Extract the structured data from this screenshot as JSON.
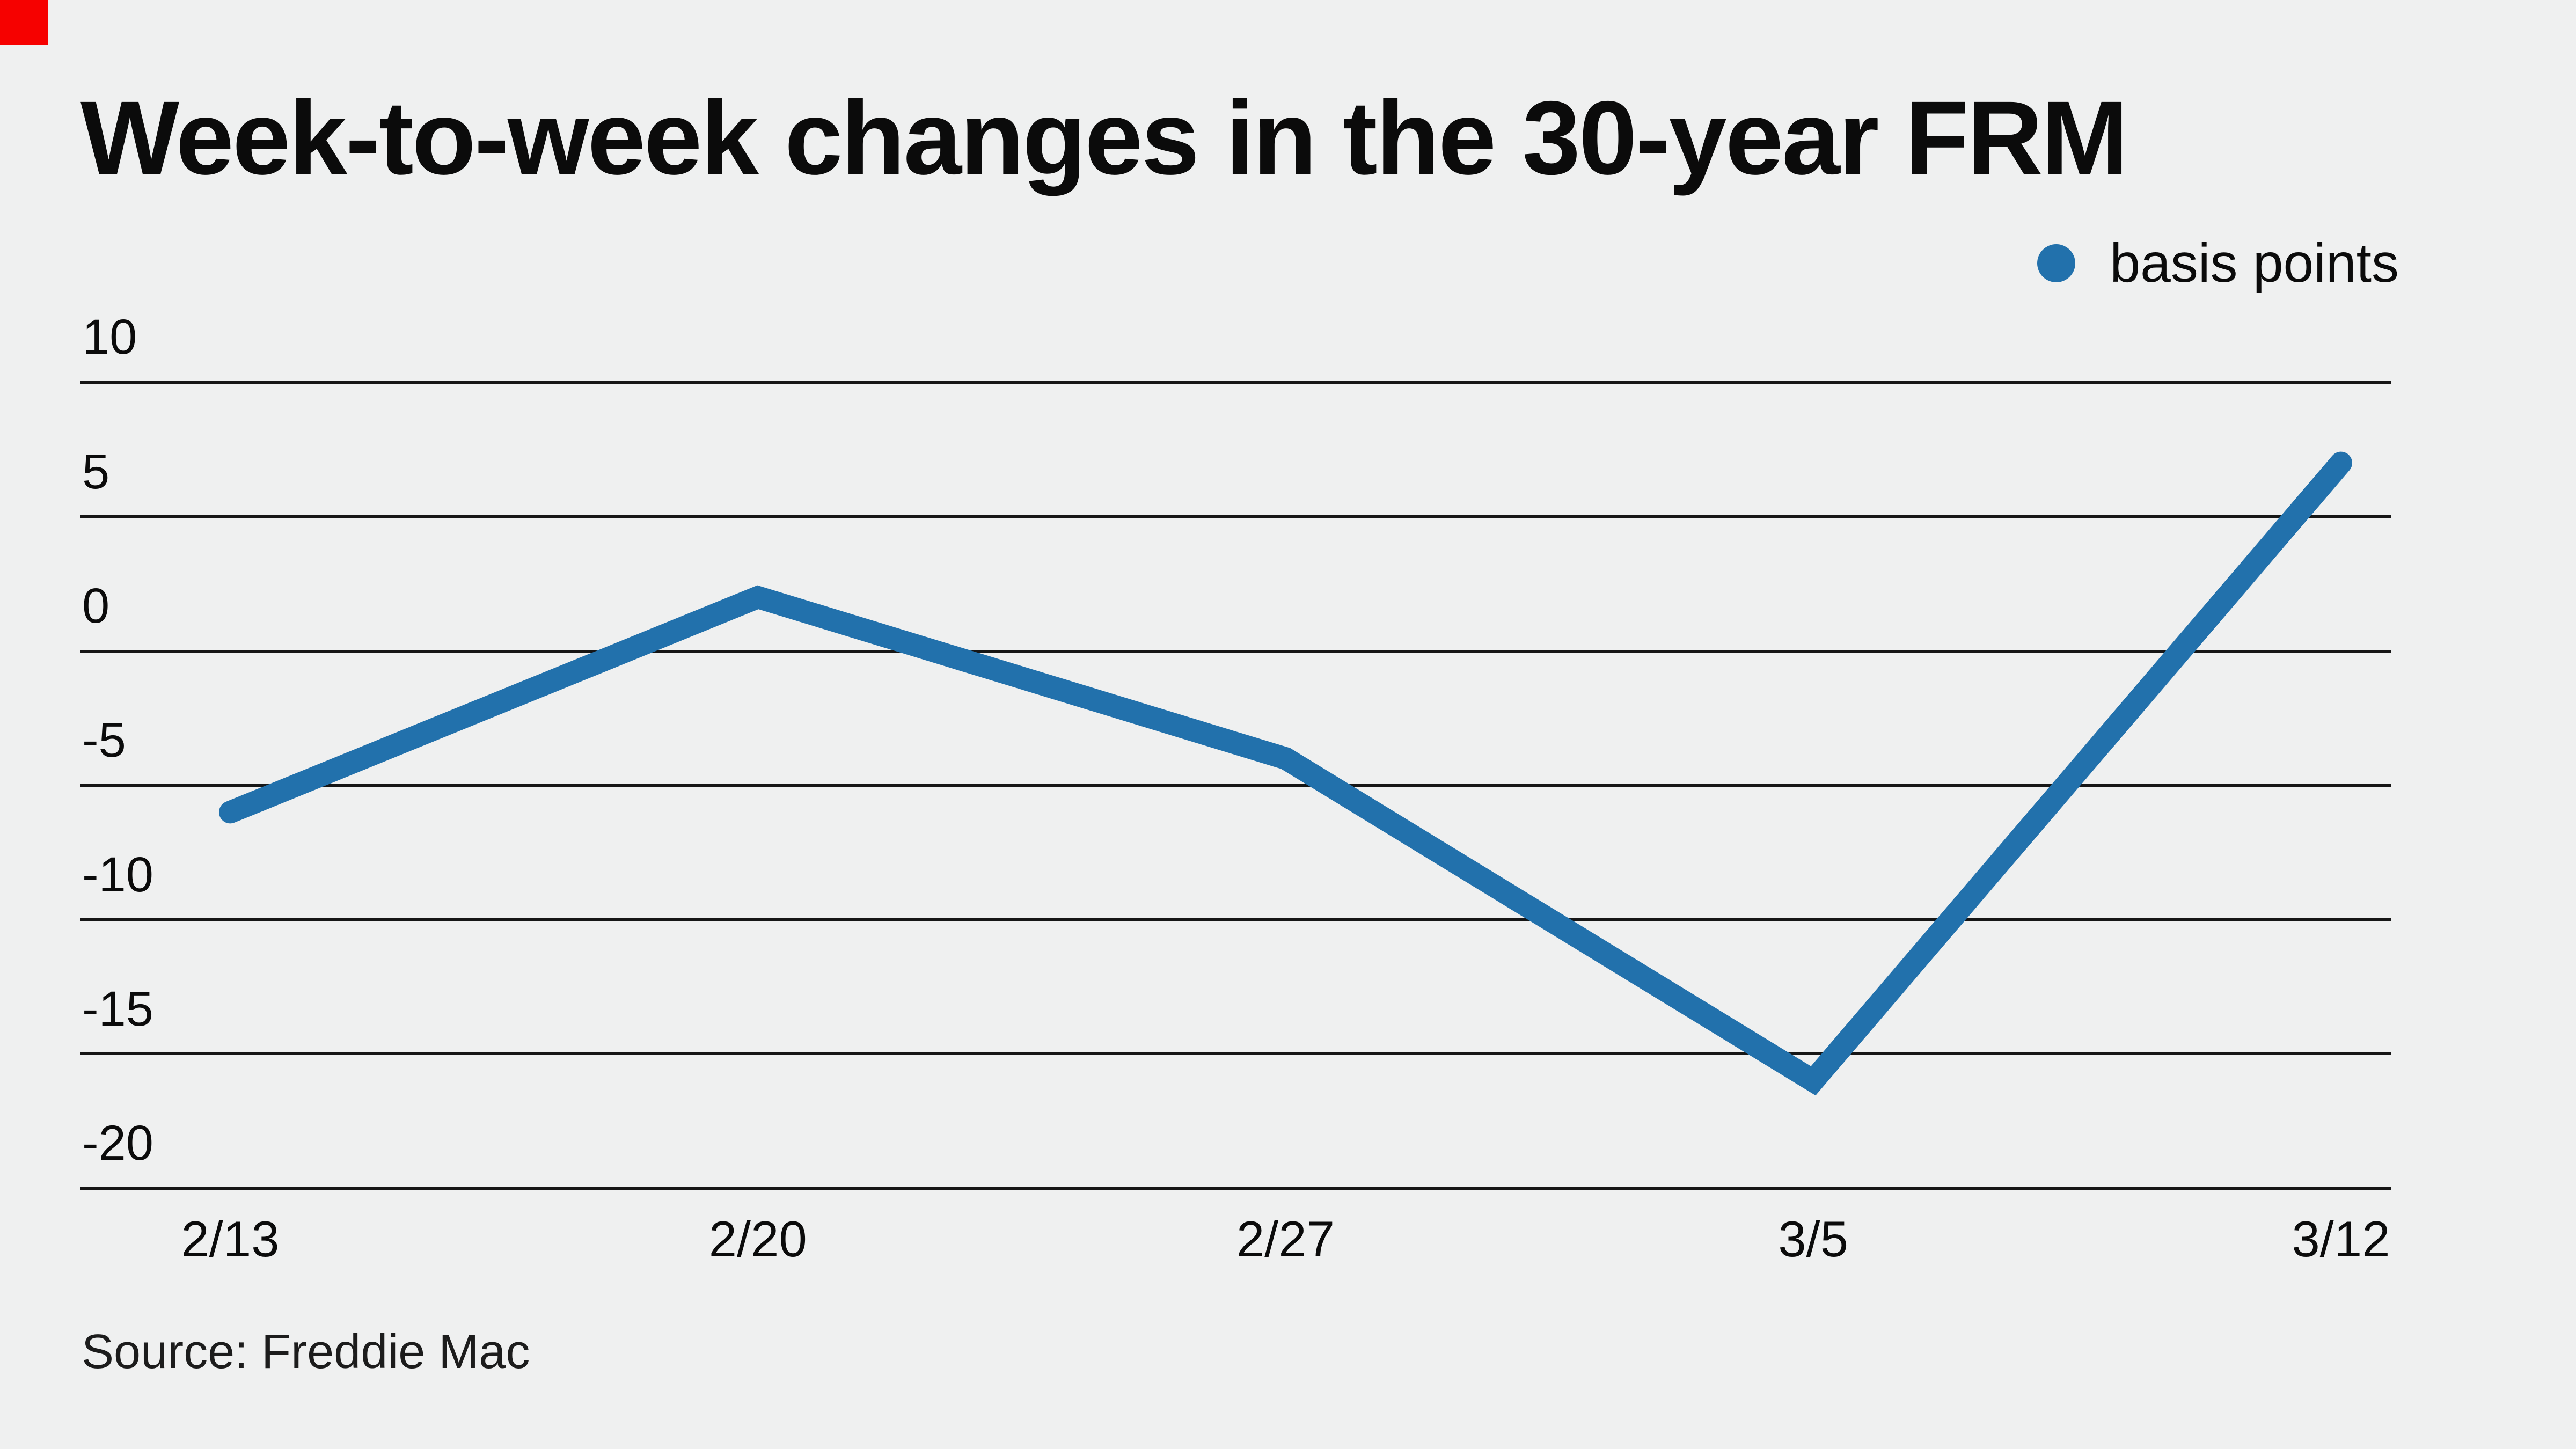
{
  "title": "Week-to-week changes in the 30-year FRM",
  "legend": {
    "label": "basis points"
  },
  "source": "Source: Freddie Mac",
  "colors": {
    "background": "#eff0f0",
    "line": "#2271ac",
    "grid": "#161616",
    "text": "#0b0b0b",
    "corner_marker_red": "#f60100"
  },
  "chart_data": {
    "type": "line",
    "title": "Week-to-week changes in the 30-year FRM",
    "categories": [
      "2/13",
      "2/20",
      "2/27",
      "3/5",
      "3/12"
    ],
    "series": [
      {
        "name": "basis points",
        "values": [
          -6,
          2,
          -4,
          -16,
          7
        ]
      }
    ],
    "xlabel": "",
    "ylabel": "",
    "yticks": [
      10,
      5,
      0,
      -5,
      -10,
      -15,
      -20
    ],
    "ylim": [
      -20,
      10
    ],
    "grid": "horizontal",
    "legend_position": "top-right",
    "source": "Source: Freddie Mac"
  }
}
